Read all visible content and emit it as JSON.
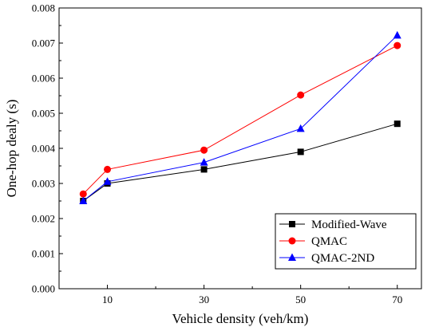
{
  "chart_data": {
    "type": "line",
    "title": "",
    "xlabel": "Vehicle density (veh/km)",
    "ylabel": "One-hop dealy (s)",
    "xlim": [
      0,
      75
    ],
    "ylim": [
      0,
      0.008
    ],
    "xticks": [
      10,
      30,
      50,
      70
    ],
    "xtick_labels": [
      "10",
      "30",
      "50",
      "70"
    ],
    "yticks": [
      0,
      0.001,
      0.002,
      0.003,
      0.004,
      0.005,
      0.006,
      0.007,
      0.008
    ],
    "ytick_labels": [
      "0.000",
      "0.001",
      "0.002",
      "0.003",
      "0.004",
      "0.005",
      "0.006",
      "0.007",
      "0.008"
    ],
    "grid": false,
    "legend_position": "bottom-right",
    "x": [
      5,
      10,
      30,
      50,
      70
    ],
    "series": [
      {
        "name": "Modified-Wave",
        "color": "#000000",
        "marker": "square",
        "values": [
          0.0025,
          0.003,
          0.0034,
          0.0039,
          0.0047
        ]
      },
      {
        "name": "QMAC",
        "color": "#ff0000",
        "marker": "circle",
        "values": [
          0.0027,
          0.0034,
          0.00395,
          0.00552,
          0.00693
        ]
      },
      {
        "name": "QMAC-2ND",
        "color": "#0000ff",
        "marker": "triangle",
        "values": [
          0.0025,
          0.00305,
          0.0036,
          0.00456,
          0.00722
        ]
      }
    ]
  }
}
